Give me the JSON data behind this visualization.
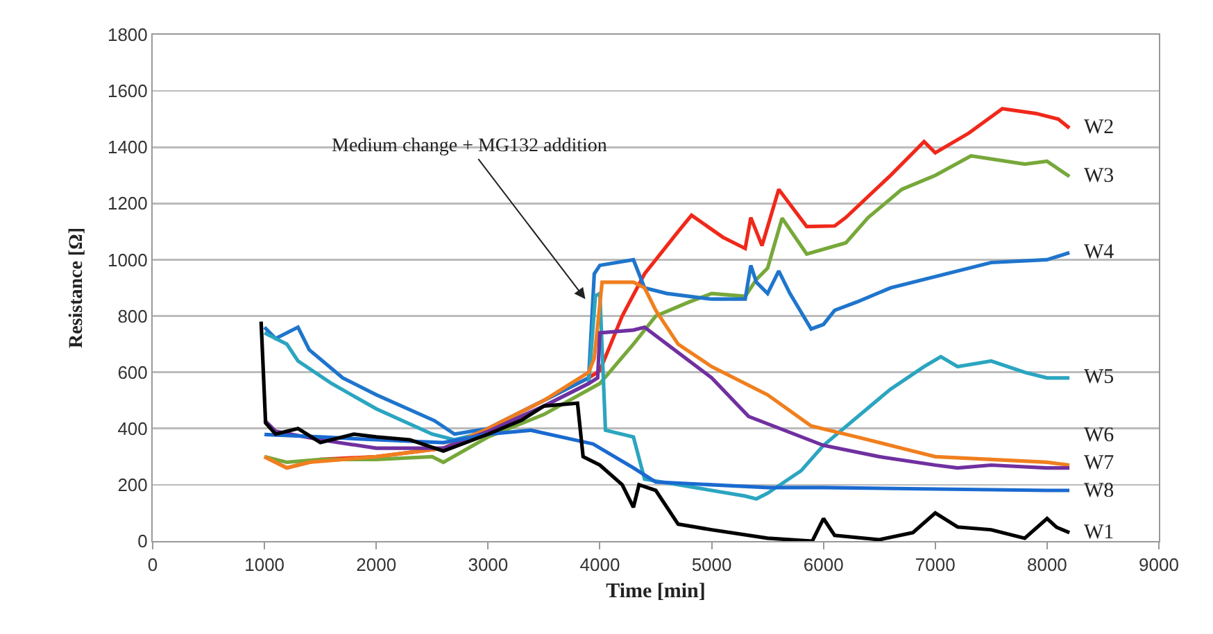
{
  "chart_data": {
    "type": "line",
    "xlabel": "Time [min]",
    "ylabel": "Resistance [Ω]",
    "xlim": [
      0,
      9000
    ],
    "xticks": [
      0,
      1000,
      2000,
      3000,
      4000,
      5000,
      6000,
      7000,
      8000,
      9000
    ],
    "ylim": [
      0,
      1800
    ],
    "yticks": [
      0,
      200,
      400,
      600,
      800,
      1000,
      1200,
      1400,
      1600,
      1800
    ],
    "grid": "y",
    "legend": false,
    "marker": "none",
    "line_style": "solid",
    "annotations": [
      {
        "text": "Medium change + MG132 addition",
        "x": 3870,
        "y": 860
      }
    ],
    "series": [
      {
        "name": "W2",
        "color": "#f0281a",
        "x": [
          1000,
          1200,
          1500,
          2000,
          2600,
          3000,
          3500,
          3900,
          4000,
          4200,
          4400,
          4700,
          4820,
          5100,
          5300,
          5350,
          5450,
          5600,
          5850,
          6100,
          6200,
          6600,
          6900,
          7000,
          7300,
          7600,
          7900,
          8100,
          8200
        ],
        "values": [
          300,
          260,
          290,
          300,
          330,
          400,
          500,
          580,
          606,
          800,
          950,
          1100,
          1158,
          1080,
          1040,
          1150,
          1050,
          1250,
          1118,
          1120,
          1150,
          1300,
          1420,
          1380,
          1450,
          1537,
          1520,
          1500,
          1468
        ]
      },
      {
        "name": "W3",
        "color": "#77a83a",
        "x": [
          1000,
          1200,
          1500,
          2000,
          2500,
          2600,
          3000,
          3500,
          4000,
          4300,
          4500,
          4800,
          5000,
          5300,
          5400,
          5500,
          5630,
          5850,
          6200,
          6400,
          6700,
          7000,
          7320,
          7800,
          8000,
          8200
        ],
        "values": [
          300,
          280,
          290,
          290,
          300,
          280,
          370,
          450,
          560,
          700,
          800,
          850,
          880,
          870,
          930,
          970,
          1148,
          1020,
          1060,
          1150,
          1250,
          1300,
          1369,
          1340,
          1350,
          1296
        ]
      },
      {
        "name": "W4",
        "color": "#1f75cc",
        "x": [
          1000,
          1100,
          1300,
          1400,
          1700,
          2000,
          2520,
          2700,
          3000,
          3500,
          3900,
          3950,
          4000,
          4300,
          4400,
          4600,
          5000,
          5300,
          5350,
          5400,
          5500,
          5600,
          5700,
          5890,
          6000,
          6100,
          6300,
          6600,
          7000,
          7500,
          8000,
          8200
        ],
        "values": [
          760,
          720,
          760,
          680,
          580,
          520,
          428,
          380,
          400,
          500,
          580,
          950,
          980,
          1000,
          900,
          880,
          860,
          860,
          980,
          920,
          880,
          960,
          880,
          754,
          770,
          820,
          850,
          900,
          940,
          990,
          1000,
          1025
        ]
      },
      {
        "name": "W5",
        "color": "#2ba5c0",
        "x": [
          1000,
          1100,
          1200,
          1300,
          1600,
          2000,
          2500,
          2700,
          3000,
          3500,
          3900,
          3960,
          4000,
          4050,
          4300,
          4400,
          5000,
          5300,
          5400,
          5500,
          5800,
          6000,
          6300,
          6600,
          6900,
          7050,
          7200,
          7500,
          7800,
          8000,
          8200
        ],
        "values": [
          740,
          720,
          700,
          640,
          560,
          470,
          380,
          360,
          390,
          480,
          560,
          872,
          880,
          394,
          370,
          220,
          180,
          160,
          150,
          170,
          250,
          340,
          440,
          540,
          620,
          655,
          620,
          640,
          600,
          580,
          580
        ]
      },
      {
        "name": "W6",
        "color": "#f07f1e",
        "x": [
          1000,
          1200,
          1400,
          2000,
          2600,
          3000,
          3500,
          3900,
          3950,
          4020,
          4300,
          4400,
          4500,
          4700,
          5000,
          5500,
          5890,
          6300,
          6700,
          7000,
          7500,
          8000,
          8200
        ],
        "values": [
          300,
          260,
          280,
          300,
          330,
          400,
          500,
          600,
          650,
          920,
          920,
          900,
          820,
          700,
          620,
          520,
          409,
          370,
          330,
          300,
          290,
          280,
          270
        ]
      },
      {
        "name": "W7",
        "color": "#7030a0",
        "x": [
          1000,
          1100,
          1500,
          2000,
          2600,
          3000,
          3500,
          3900,
          3980,
          4000,
          4300,
          4400,
          4600,
          5000,
          5330,
          6000,
          6500,
          7000,
          7200,
          7500,
          8000,
          8200
        ],
        "values": [
          430,
          390,
          360,
          330,
          330,
          390,
          480,
          560,
          580,
          740,
          750,
          760,
          700,
          580,
          443,
          340,
          300,
          270,
          260,
          270,
          260,
          260
        ]
      },
      {
        "name": "W8",
        "color": "#1a6ad0",
        "x": [
          1000,
          1500,
          2000,
          2600,
          3000,
          3380,
          3940,
          4300,
          4500,
          5000,
          5500,
          6000,
          7000,
          8000,
          8200
        ],
        "values": [
          379,
          370,
          360,
          350,
          380,
          394,
          345,
          260,
          210,
          200,
          190,
          190,
          185,
          180,
          180
        ]
      },
      {
        "name": "W1",
        "color": "#000000",
        "x": [
          970,
          1010,
          1100,
          1300,
          1500,
          1800,
          2000,
          2300,
          2600,
          2800,
          3000,
          3300,
          3500,
          3800,
          3850,
          4000,
          4200,
          4300,
          4350,
          4500,
          4700,
          5000,
          5500,
          5900,
          6000,
          6100,
          6500,
          6800,
          7000,
          7200,
          7500,
          7800,
          8000,
          8085,
          8200
        ],
        "values": [
          780,
          420,
          380,
          400,
          350,
          380,
          370,
          360,
          320,
          350,
          380,
          430,
          480,
          490,
          300,
          270,
          200,
          120,
          200,
          180,
          60,
          40,
          10,
          0,
          80,
          20,
          5,
          30,
          100,
          50,
          40,
          10,
          80,
          49,
          30
        ]
      }
    ]
  }
}
